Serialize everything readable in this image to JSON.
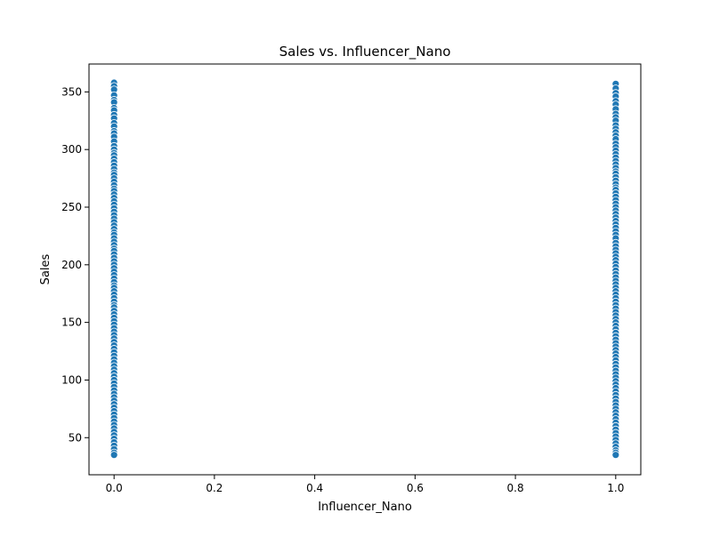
{
  "chart_data": {
    "type": "scatter",
    "title": "Sales vs. Influencer_Nano",
    "xlabel": "Influencer_Nano",
    "ylabel": "Sales",
    "xlim": [
      -0.05,
      1.05
    ],
    "ylim": [
      17.8,
      374.2
    ],
    "xticks": [
      0.0,
      0.2,
      0.4,
      0.6,
      0.8,
      1.0
    ],
    "xtick_labels": [
      "0.0",
      "0.2",
      "0.4",
      "0.6",
      "0.8",
      "1.0"
    ],
    "yticks": [
      50,
      100,
      150,
      200,
      250,
      300,
      350
    ],
    "ytick_labels": [
      "50",
      "100",
      "150",
      "200",
      "250",
      "300",
      "350"
    ],
    "grid": false,
    "legend": false,
    "marker_color": "#1f77b4",
    "marker_edge_color": "#ffffff",
    "series": [
      {
        "x_value": 0,
        "values": [
          358,
          355,
          352,
          347,
          343,
          341,
          336,
          334,
          330,
          327,
          323,
          320,
          316,
          314,
          311,
          307,
          303,
          300,
          297,
          295,
          292,
          289,
          286,
          283,
          280,
          278,
          275,
          272,
          269,
          266,
          264,
          261,
          258,
          255,
          252,
          249,
          246,
          243,
          240,
          237,
          234,
          231,
          228,
          226,
          223,
          220,
          217,
          214,
          212,
          209,
          206,
          203,
          200,
          197,
          194,
          191,
          188,
          185,
          182,
          180,
          177,
          174,
          171,
          168,
          165,
          163,
          160,
          157,
          154,
          151,
          148,
          145,
          142,
          139,
          136,
          133,
          130,
          127,
          124,
          121,
          118,
          115,
          112,
          109,
          106,
          103,
          100,
          97,
          94,
          91,
          88,
          85,
          82,
          79,
          76,
          73,
          70,
          67,
          64,
          61,
          58,
          55,
          52,
          49,
          46,
          43,
          40,
          37,
          35
        ]
      },
      {
        "x_value": 1,
        "values": [
          357,
          353,
          349,
          346,
          342,
          339,
          335,
          331,
          328,
          325,
          321,
          318,
          315,
          312,
          309,
          305,
          302,
          299,
          296,
          293,
          290,
          287,
          284,
          281,
          279,
          276,
          273,
          270,
          267,
          265,
          262,
          259,
          256,
          253,
          250,
          247,
          244,
          241,
          238,
          235,
          232,
          229,
          226,
          223,
          219,
          216,
          213,
          210,
          207,
          204,
          201,
          198,
          195,
          192,
          189,
          186,
          183,
          180,
          177,
          174,
          171,
          168,
          165,
          162,
          159,
          156,
          153,
          150,
          147,
          144,
          141,
          138,
          135,
          132,
          129,
          126,
          123,
          120,
          117,
          114,
          111,
          108,
          105,
          102,
          99,
          96,
          93,
          90,
          87,
          84,
          81,
          78,
          75,
          72,
          69,
          66,
          63,
          60,
          57,
          54,
          51,
          48,
          45,
          42,
          39,
          37,
          35
        ]
      }
    ]
  }
}
